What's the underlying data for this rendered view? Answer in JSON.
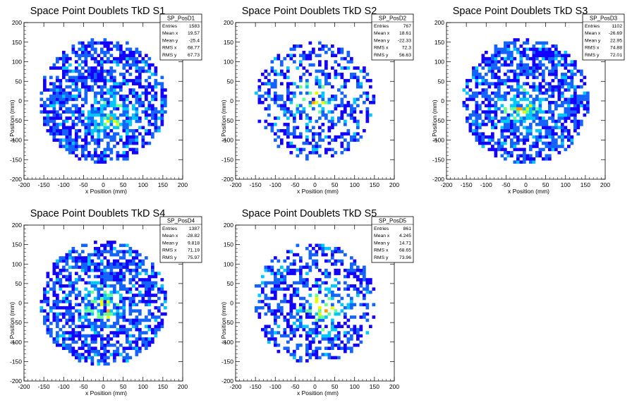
{
  "chart_data": [
    {
      "type": "heatmap",
      "title": "Space Point Doublets TkD S1",
      "xlabel": "x Position (mm)",
      "ylabel": "y Position (mm)",
      "xlim": [
        -200,
        200
      ],
      "ylim": [
        -200,
        200
      ],
      "ticks": [
        "-200",
        "-150",
        "-100",
        "-50",
        "0",
        "50",
        "100",
        "150",
        "200"
      ],
      "stats": {
        "name": "SP_PosD1",
        "rows": [
          [
            "Entries",
            "1583"
          ],
          [
            "Mean x",
            "19.57"
          ],
          [
            "Mean y",
            "-25.4"
          ],
          [
            "RMS x",
            "68.77"
          ],
          [
            "RMS y",
            "67.73"
          ]
        ]
      },
      "density": {
        "mean_x": 19.57,
        "mean_y": -25.4,
        "hotspot": [
          20,
          -40
        ],
        "radius": 160
      }
    },
    {
      "type": "heatmap",
      "title": "Space Point Doublets TkD S2",
      "xlabel": "x Position (mm)",
      "ylabel": "y Position (mm)",
      "xlim": [
        -200,
        200
      ],
      "ylim": [
        -200,
        200
      ],
      "ticks": [
        "-200",
        "-150",
        "-100",
        "-50",
        "0",
        "50",
        "100",
        "150",
        "200"
      ],
      "stats": {
        "name": "SP_PosD2",
        "rows": [
          [
            "Entries",
            "767"
          ],
          [
            "Mean x",
            "18.61"
          ],
          [
            "Mean y",
            "-22.33"
          ],
          [
            "RMS x",
            "72.3"
          ],
          [
            "RMS y",
            "56.63"
          ]
        ]
      },
      "density": {
        "mean_x": 18.61,
        "mean_y": -22.33,
        "hotspot": [
          0,
          5
        ],
        "radius": 150
      }
    },
    {
      "type": "heatmap",
      "title": "Space Point Doublets TkD S3",
      "xlabel": "x Position (mm)",
      "ylabel": "y Position (mm)",
      "xlim": [
        -200,
        200
      ],
      "ylim": [
        -200,
        200
      ],
      "ticks": [
        "-200",
        "-150",
        "-100",
        "-50",
        "0",
        "50",
        "100",
        "150",
        "200"
      ],
      "stats": {
        "name": "SP_PosD3",
        "rows": [
          [
            "Entries",
            "1102"
          ],
          [
            "Mean x",
            "-26.69"
          ],
          [
            "Mean y",
            "22.95"
          ],
          [
            "RMS x",
            "74.88"
          ],
          [
            "RMS y",
            "72.01"
          ]
        ]
      },
      "density": {
        "mean_x": -26.69,
        "mean_y": 22.95,
        "hotspot": [
          -10,
          -20
        ],
        "radius": 160
      }
    },
    {
      "type": "heatmap",
      "title": "Space Point Doublets TkD S4",
      "xlabel": "x Position (mm)",
      "ylabel": "y Position (mm)",
      "xlim": [
        -200,
        200
      ],
      "ylim": [
        -200,
        200
      ],
      "ticks": [
        "-200",
        "-150",
        "-100",
        "-50",
        "0",
        "50",
        "100",
        "150",
        "200"
      ],
      "stats": {
        "name": "SP_PosD4",
        "rows": [
          [
            "Entries",
            "1387"
          ],
          [
            "Mean x",
            "-28.82"
          ],
          [
            "Mean y",
            "9.818"
          ],
          [
            "RMS x",
            "71.19"
          ],
          [
            "RMS y",
            "75.97"
          ]
        ]
      },
      "density": {
        "mean_x": -28.82,
        "mean_y": 9.818,
        "hotspot": [
          0,
          -10
        ],
        "radius": 160
      }
    },
    {
      "type": "heatmap",
      "title": "Space Point Doublets TkD S5",
      "xlabel": "x Position (mm)",
      "ylabel": "y Position (mm)",
      "xlim": [
        -200,
        200
      ],
      "ylim": [
        -200,
        200
      ],
      "ticks": [
        "-200",
        "-150",
        "-100",
        "-50",
        "0",
        "50",
        "100",
        "150",
        "200"
      ],
      "stats": {
        "name": "SP_PosD5",
        "rows": [
          [
            "Entries",
            "861"
          ],
          [
            "Mean x",
            "4.245"
          ],
          [
            "Mean y",
            "14.71"
          ],
          [
            "RMS x",
            "68.65"
          ],
          [
            "RMS y",
            "73.96"
          ]
        ]
      },
      "density": {
        "mean_x": 4.245,
        "mean_y": 14.71,
        "hotspot": [
          20,
          -20
        ],
        "radius": 155
      }
    }
  ],
  "colors": {
    "frame": "#000000",
    "palette": [
      "#1400ff",
      "#1463ff",
      "#00c8ff",
      "#6aff96",
      "#e6ff00",
      "#ffa000",
      "#ff0000"
    ]
  }
}
